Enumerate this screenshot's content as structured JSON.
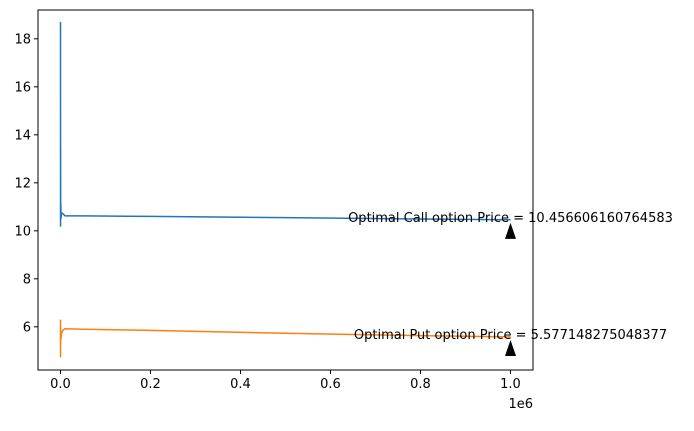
{
  "chart_data": {
    "type": "line",
    "title": "",
    "xlabel": "",
    "ylabel": "",
    "x_offset_label": "1e6",
    "xlim": [
      -50000,
      1050000
    ],
    "ylim": [
      4.2,
      19.2
    ],
    "xticks": [
      0,
      0.2,
      0.4,
      0.6,
      0.8,
      1.0
    ],
    "xtick_labels": [
      "0.0",
      "0.2",
      "0.4",
      "0.6",
      "0.8",
      "1.0"
    ],
    "yticks": [
      6,
      8,
      10,
      12,
      14,
      16,
      18
    ],
    "ytick_labels": [
      "6",
      "8",
      "10",
      "12",
      "14",
      "16",
      "18"
    ],
    "grid": false,
    "series": [
      {
        "color": "#1f77b4",
        "x": [
          0,
          100,
          200,
          400,
          700,
          1000,
          2000,
          5000,
          10000,
          50000,
          200000,
          500000,
          800000,
          1000000
        ],
        "y": [
          18.7,
          10.2,
          13.5,
          10.8,
          11.1,
          10.5,
          10.75,
          10.72,
          10.62,
          10.62,
          10.6,
          10.55,
          10.49,
          10.46
        ]
      },
      {
        "color": "#ff7f0e",
        "x": [
          0,
          100,
          200,
          400,
          700,
          1000,
          2000,
          5000,
          10000,
          50000,
          200000,
          500000,
          800000,
          1000000
        ],
        "y": [
          6.3,
          4.75,
          6.0,
          5.4,
          5.8,
          5.5,
          5.7,
          5.85,
          5.92,
          5.9,
          5.85,
          5.73,
          5.63,
          5.58
        ]
      }
    ],
    "annotations": [
      {
        "text": "Optimal Call option Price = 10.456606160764583",
        "x": 1000000,
        "y": 10.456606160764583
      },
      {
        "text": "Optimal Put option Price = 5.577148275048377",
        "x": 1000000,
        "y": 5.577148275048377
      }
    ]
  }
}
